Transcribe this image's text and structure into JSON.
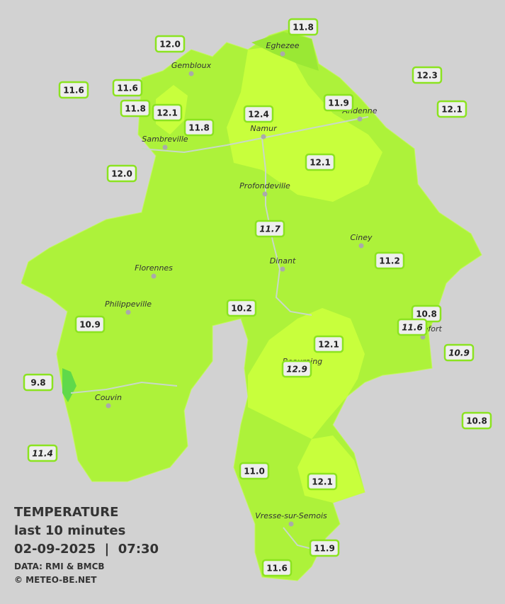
{
  "legend": {
    "heading": "TEMPERATURE",
    "subtitle": "last 10 minutes",
    "datetime": "02-09-2025  |  07:30",
    "source": "DATA: RMI & BMCB",
    "credit": "© METEO-BE.NET"
  },
  "cities": [
    "Eghezee",
    "Gembloux",
    "Andenne",
    "Namur",
    "Sambreville",
    "Profondeville",
    "Ciney",
    "Dinant",
    "Florennes",
    "Philippeville",
    "Rochefort",
    "Beauraing",
    "Couvin",
    "Vresse-sur-Semois"
  ],
  "stations": [
    "12.0",
    "11.8",
    "11.6",
    "11.6",
    "11.8",
    "12.1",
    "11.8",
    "12.4",
    "11.9",
    "12.3",
    "12.1",
    "12.0",
    "12.1",
    "11.7",
    "11.2",
    "10.8",
    "11.6",
    "10.2",
    "10.9",
    "12.1",
    "12.9",
    "10.9",
    "9.8",
    "10.8",
    "11.4",
    "11.0",
    "12.1",
    "11.9",
    "11.6"
  ]
}
